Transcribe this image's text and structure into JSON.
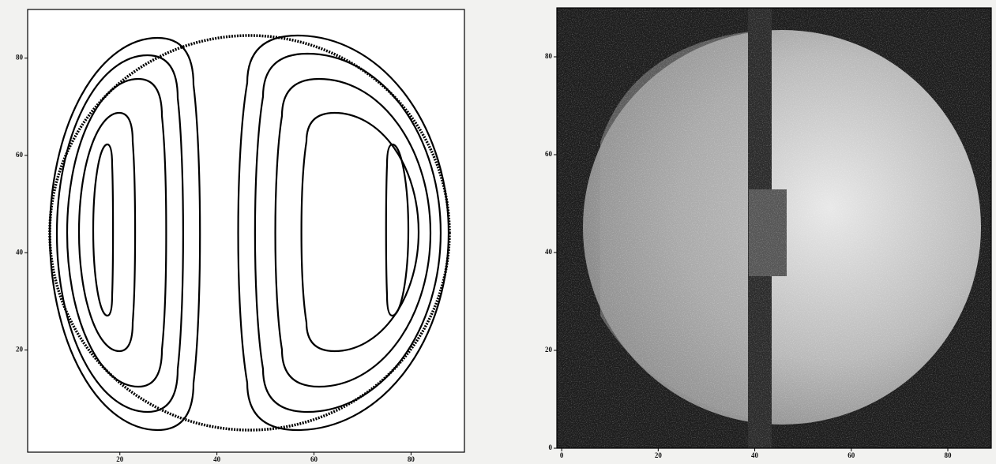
{
  "chart_data": [
    {
      "type": "contour",
      "xlim": [
        1,
        91
      ],
      "ylim": [
        -1,
        90
      ],
      "xticks": [
        20,
        40,
        60,
        80
      ],
      "yticks": [
        20,
        40,
        60,
        80
      ]
    },
    {
      "type": "image",
      "xlim": [
        -1,
        89
      ],
      "ylim": [
        0,
        90
      ],
      "xticks": [
        0,
        20,
        40,
        60,
        80
      ],
      "yticks": [
        0,
        20,
        40,
        60,
        80
      ]
    }
  ]
}
